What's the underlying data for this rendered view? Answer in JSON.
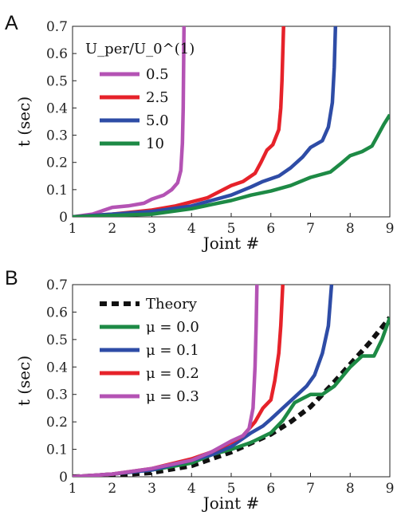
{
  "chart_data": [
    {
      "panel": "A",
      "type": "line",
      "xlabel": "Joint #",
      "ylabel": "t (sec)",
      "xlim": [
        1,
        9
      ],
      "ylim": [
        0,
        0.7
      ],
      "xticks": [
        1,
        2,
        3,
        4,
        5,
        6,
        7,
        8,
        9
      ],
      "yticks": [
        0,
        0.1,
        0.2,
        0.3,
        0.4,
        0.5,
        0.6,
        0.7
      ],
      "grid": false,
      "legend_title": "U_per/U_0^(1)",
      "legend_position": "top-left",
      "series": [
        {
          "name": "0.5",
          "color": "#b453b4",
          "points": [
            [
              1.0,
              0.0
            ],
            [
              1.5,
              0.01
            ],
            [
              1.8,
              0.025
            ],
            [
              2.0,
              0.035
            ],
            [
              2.4,
              0.04
            ],
            [
              2.8,
              0.05
            ],
            [
              3.0,
              0.065
            ],
            [
              3.3,
              0.08
            ],
            [
              3.5,
              0.1
            ],
            [
              3.65,
              0.125
            ],
            [
              3.73,
              0.17
            ],
            [
              3.77,
              0.27
            ],
            [
              3.79,
              0.4
            ],
            [
              3.8,
              0.55
            ],
            [
              3.81,
              0.7
            ]
          ]
        },
        {
          "name": "2.5",
          "color": "#e6222a",
          "points": [
            [
              1.0,
              0.0
            ],
            [
              2.0,
              0.01
            ],
            [
              3.0,
              0.025
            ],
            [
              3.6,
              0.04
            ],
            [
              4.0,
              0.055
            ],
            [
              4.4,
              0.07
            ],
            [
              4.8,
              0.1
            ],
            [
              5.0,
              0.115
            ],
            [
              5.3,
              0.13
            ],
            [
              5.6,
              0.16
            ],
            [
              5.75,
              0.2
            ],
            [
              5.9,
              0.245
            ],
            [
              6.05,
              0.265
            ],
            [
              6.2,
              0.32
            ],
            [
              6.25,
              0.4
            ],
            [
              6.28,
              0.5
            ],
            [
              6.3,
              0.6
            ],
            [
              6.32,
              0.7
            ]
          ]
        },
        {
          "name": "5.0",
          "color": "#2e4ca6",
          "points": [
            [
              1.0,
              0.0
            ],
            [
              2.0,
              0.01
            ],
            [
              3.0,
              0.02
            ],
            [
              3.5,
              0.03
            ],
            [
              4.0,
              0.04
            ],
            [
              4.5,
              0.06
            ],
            [
              5.0,
              0.08
            ],
            [
              5.5,
              0.11
            ],
            [
              5.8,
              0.13
            ],
            [
              6.2,
              0.15
            ],
            [
              6.5,
              0.18
            ],
            [
              6.8,
              0.22
            ],
            [
              7.0,
              0.255
            ],
            [
              7.3,
              0.28
            ],
            [
              7.45,
              0.33
            ],
            [
              7.55,
              0.42
            ],
            [
              7.6,
              0.55
            ],
            [
              7.63,
              0.7
            ]
          ]
        },
        {
          "name": "10",
          "color": "#1d8a45",
          "points": [
            [
              1.0,
              0.0
            ],
            [
              2.0,
              0.005
            ],
            [
              3.0,
              0.01
            ],
            [
              4.0,
              0.03
            ],
            [
              4.5,
              0.045
            ],
            [
              5.0,
              0.06
            ],
            [
              5.5,
              0.08
            ],
            [
              6.0,
              0.095
            ],
            [
              6.5,
              0.115
            ],
            [
              7.0,
              0.145
            ],
            [
              7.5,
              0.165
            ],
            [
              7.8,
              0.2
            ],
            [
              8.0,
              0.225
            ],
            [
              8.3,
              0.24
            ],
            [
              8.55,
              0.26
            ],
            [
              8.7,
              0.3
            ],
            [
              8.85,
              0.34
            ],
            [
              9.0,
              0.375
            ]
          ]
        }
      ]
    },
    {
      "panel": "B",
      "type": "line",
      "xlabel": "Joint #",
      "ylabel": "t (sec)",
      "xlim": [
        1,
        9
      ],
      "ylim": [
        0,
        0.7
      ],
      "xticks": [
        1,
        2,
        3,
        4,
        5,
        6,
        7,
        8,
        9
      ],
      "yticks": [
        0,
        0.1,
        0.2,
        0.3,
        0.4,
        0.5,
        0.6,
        0.7
      ],
      "grid": false,
      "legend_position": "top-left",
      "series": [
        {
          "name": "Theory",
          "color": "#111111",
          "dashed": true,
          "points": [
            [
              1.0,
              0.0
            ],
            [
              2.0,
              0.005
            ],
            [
              3.0,
              0.015
            ],
            [
              4.0,
              0.04
            ],
            [
              5.0,
              0.09
            ],
            [
              6.0,
              0.155
            ],
            [
              6.5,
              0.2
            ],
            [
              7.0,
              0.255
            ],
            [
              7.5,
              0.33
            ],
            [
              8.0,
              0.41
            ],
            [
              8.5,
              0.49
            ],
            [
              9.0,
              0.58
            ]
          ]
        },
        {
          "name": "μ = 0.0",
          "color": "#1d8a45",
          "points": [
            [
              1.0,
              0.0
            ],
            [
              2.0,
              0.01
            ],
            [
              3.0,
              0.025
            ],
            [
              4.0,
              0.05
            ],
            [
              4.5,
              0.08
            ],
            [
              5.0,
              0.1
            ],
            [
              5.5,
              0.125
            ],
            [
              6.0,
              0.16
            ],
            [
              6.3,
              0.205
            ],
            [
              6.6,
              0.27
            ],
            [
              7.0,
              0.3
            ],
            [
              7.3,
              0.3
            ],
            [
              7.6,
              0.33
            ],
            [
              8.0,
              0.4
            ],
            [
              8.3,
              0.44
            ],
            [
              8.6,
              0.44
            ],
            [
              8.8,
              0.5
            ],
            [
              9.0,
              0.58
            ]
          ]
        },
        {
          "name": "μ = 0.1",
          "color": "#2e4ca6",
          "points": [
            [
              1.0,
              0.0
            ],
            [
              2.0,
              0.01
            ],
            [
              3.0,
              0.025
            ],
            [
              4.0,
              0.06
            ],
            [
              4.5,
              0.08
            ],
            [
              5.0,
              0.11
            ],
            [
              5.5,
              0.16
            ],
            [
              5.8,
              0.185
            ],
            [
              6.0,
              0.21
            ],
            [
              6.3,
              0.25
            ],
            [
              6.6,
              0.29
            ],
            [
              6.9,
              0.33
            ],
            [
              7.1,
              0.37
            ],
            [
              7.3,
              0.45
            ],
            [
              7.45,
              0.55
            ],
            [
              7.53,
              0.7
            ]
          ]
        },
        {
          "name": "μ = 0.2",
          "color": "#e6222a",
          "points": [
            [
              1.0,
              0.0
            ],
            [
              2.0,
              0.01
            ],
            [
              3.0,
              0.03
            ],
            [
              4.0,
              0.065
            ],
            [
              4.5,
              0.09
            ],
            [
              5.0,
              0.125
            ],
            [
              5.3,
              0.15
            ],
            [
              5.6,
              0.2
            ],
            [
              5.8,
              0.25
            ],
            [
              6.0,
              0.28
            ],
            [
              6.1,
              0.35
            ],
            [
              6.2,
              0.45
            ],
            [
              6.25,
              0.55
            ],
            [
              6.3,
              0.7
            ]
          ]
        },
        {
          "name": "μ = 0.3",
          "color": "#b453b4",
          "points": [
            [
              1.0,
              0.0
            ],
            [
              2.0,
              0.01
            ],
            [
              3.0,
              0.03
            ],
            [
              4.0,
              0.06
            ],
            [
              4.5,
              0.09
            ],
            [
              5.0,
              0.13
            ],
            [
              5.3,
              0.15
            ],
            [
              5.45,
              0.175
            ],
            [
              5.55,
              0.25
            ],
            [
              5.6,
              0.4
            ],
            [
              5.63,
              0.55
            ],
            [
              5.65,
              0.7
            ]
          ]
        }
      ]
    }
  ]
}
